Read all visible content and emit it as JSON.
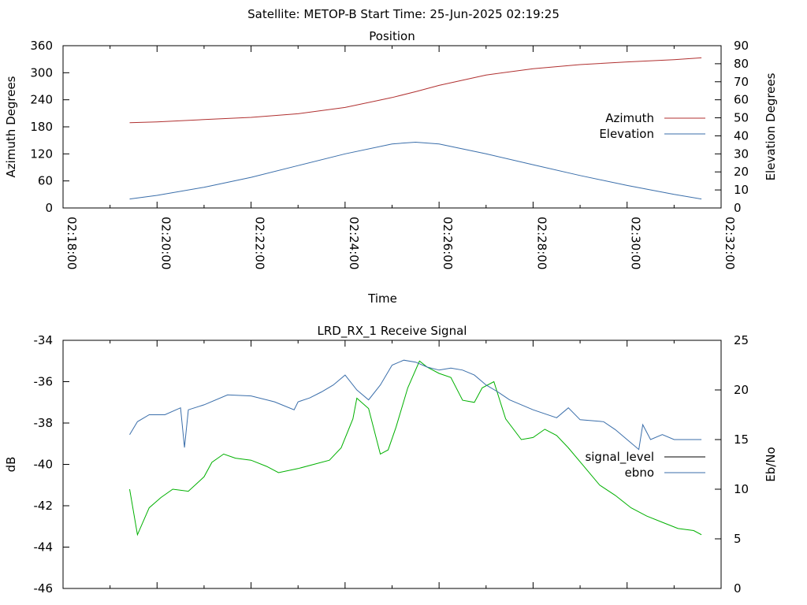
{
  "page_title": "Satellite: METOP-B    Start Time: 25-Jun-2025 02:19:25",
  "chart_data": [
    {
      "type": "line",
      "title": "Position",
      "xlabel": "Time",
      "ylabel": "Azimuth Degrees",
      "y2label": "Elevation Degrees",
      "xlim": [
        "02:18:00",
        "02:32:00"
      ],
      "x_ticks": [
        "02:18:00",
        "02:20:00",
        "02:22:00",
        "02:24:00",
        "02:26:00",
        "02:28:00",
        "02:30:00",
        "02:32:00"
      ],
      "ylim": [
        0,
        360
      ],
      "y_ticks": [
        "0",
        "60",
        "120",
        "180",
        "240",
        "300",
        "360"
      ],
      "y2lim": [
        0,
        90
      ],
      "y2_ticks": [
        "0",
        "10",
        "20",
        "30",
        "40",
        "50",
        "60",
        "70",
        "80",
        "90"
      ],
      "legend": "center-right",
      "series": [
        {
          "name": "Azimuth",
          "axis": "y",
          "color": "#b03030",
          "x": [
            "02:19:25",
            "02:20:00",
            "02:21:00",
            "02:22:00",
            "02:23:00",
            "02:24:00",
            "02:25:00",
            "02:25:30",
            "02:26:00",
            "02:27:00",
            "02:28:00",
            "02:29:00",
            "02:30:00",
            "02:31:00",
            "02:31:35"
          ],
          "values": [
            189,
            191,
            196,
            201,
            209,
            223,
            245,
            258,
            272,
            295,
            309,
            318,
            324,
            329,
            333
          ]
        },
        {
          "name": "Elevation",
          "axis": "y2",
          "color": "#3a6eaa",
          "x": [
            "02:19:25",
            "02:20:00",
            "02:21:00",
            "02:22:00",
            "02:23:00",
            "02:24:00",
            "02:25:00",
            "02:25:30",
            "02:26:00",
            "02:27:00",
            "02:28:00",
            "02:29:00",
            "02:30:00",
            "02:31:00",
            "02:31:35"
          ],
          "values": [
            5,
            7,
            11.5,
            17,
            23.5,
            30,
            35.5,
            36.5,
            35.5,
            30,
            24,
            18,
            12.5,
            7.5,
            5
          ]
        }
      ]
    },
    {
      "type": "line",
      "title": "LRD_RX_1 Receive Signal",
      "xlabel": "",
      "ylabel": "dB",
      "y2label": "Eb/No",
      "xlim": [
        "02:18:00",
        "02:32:00"
      ],
      "ylim": [
        -46,
        -34
      ],
      "y_ticks": [
        "-46",
        "-44",
        "-42",
        "-40",
        "-38",
        "-36",
        "-34"
      ],
      "y2lim": [
        0,
        25
      ],
      "y2_ticks": [
        "0",
        "5",
        "10",
        "15",
        "20",
        "25"
      ],
      "legend": "center-right",
      "series": [
        {
          "name": "signal_level",
          "axis": "y",
          "color": "#00b000",
          "x": [
            "02:19:25",
            "02:19:35",
            "02:19:50",
            "02:20:05",
            "02:20:20",
            "02:20:40",
            "02:21:00",
            "02:21:10",
            "02:21:25",
            "02:21:40",
            "02:22:00",
            "02:22:20",
            "02:22:35",
            "02:23:00",
            "02:23:20",
            "02:23:40",
            "02:23:55",
            "02:24:10",
            "02:24:15",
            "02:24:30",
            "02:24:45",
            "02:24:55",
            "02:25:05",
            "02:25:20",
            "02:25:35",
            "02:25:45",
            "02:26:00",
            "02:26:15",
            "02:26:30",
            "02:26:45",
            "02:26:55",
            "02:27:10",
            "02:27:25",
            "02:27:45",
            "02:28:00",
            "02:28:15",
            "02:28:30",
            "02:28:45",
            "02:29:05",
            "02:29:25",
            "02:29:45",
            "02:30:05",
            "02:30:25",
            "02:30:45",
            "02:31:05",
            "02:31:25",
            "02:31:35"
          ],
          "values": [
            -41.2,
            -43.4,
            -42.1,
            -41.6,
            -41.2,
            -41.3,
            -40.6,
            -39.9,
            -39.5,
            -39.7,
            -39.8,
            -40.1,
            -40.4,
            -40.2,
            -40.0,
            -39.8,
            -39.2,
            -37.8,
            -36.8,
            -37.3,
            -39.5,
            -39.3,
            -38.2,
            -36.3,
            -35.0,
            -35.3,
            -35.6,
            -35.8,
            -36.9,
            -37.0,
            -36.3,
            -36.0,
            -37.8,
            -38.8,
            -38.7,
            -38.3,
            -38.6,
            -39.2,
            -40.1,
            -41.0,
            -41.5,
            -42.1,
            -42.5,
            -42.8,
            -43.1,
            -43.2,
            -43.4
          ]
        },
        {
          "name": "ebno",
          "axis": "y2",
          "color": "#3a6eaa",
          "x": [
            "02:19:25",
            "02:19:35",
            "02:19:50",
            "02:20:10",
            "02:20:30",
            "02:20:35",
            "02:20:40",
            "02:21:00",
            "02:21:30",
            "02:22:00",
            "02:22:30",
            "02:22:55",
            "02:23:00",
            "02:23:15",
            "02:23:30",
            "02:23:45",
            "02:24:00",
            "02:24:15",
            "02:24:30",
            "02:24:45",
            "02:25:00",
            "02:25:15",
            "02:25:30",
            "02:25:45",
            "02:26:00",
            "02:26:15",
            "02:26:30",
            "02:26:45",
            "02:27:00",
            "02:27:15",
            "02:27:30",
            "02:28:00",
            "02:28:30",
            "02:28:45",
            "02:29:00",
            "02:29:30",
            "02:29:45",
            "02:30:00",
            "02:30:15",
            "02:30:20",
            "02:30:30",
            "02:30:45",
            "02:31:00",
            "02:31:35"
          ],
          "values": [
            15.5,
            16.8,
            17.5,
            17.5,
            18.2,
            14.2,
            18.0,
            18.5,
            19.5,
            19.4,
            18.8,
            18.0,
            18.8,
            19.2,
            19.8,
            20.5,
            21.5,
            20.0,
            19.0,
            20.5,
            22.5,
            23.0,
            22.8,
            22.3,
            22.0,
            22.2,
            22.0,
            21.5,
            20.5,
            19.8,
            19.0,
            18.0,
            17.2,
            18.2,
            17.0,
            16.8,
            16.0,
            15.0,
            14.0,
            16.5,
            15.0,
            15.5,
            15.0,
            15.0
          ]
        }
      ]
    }
  ]
}
